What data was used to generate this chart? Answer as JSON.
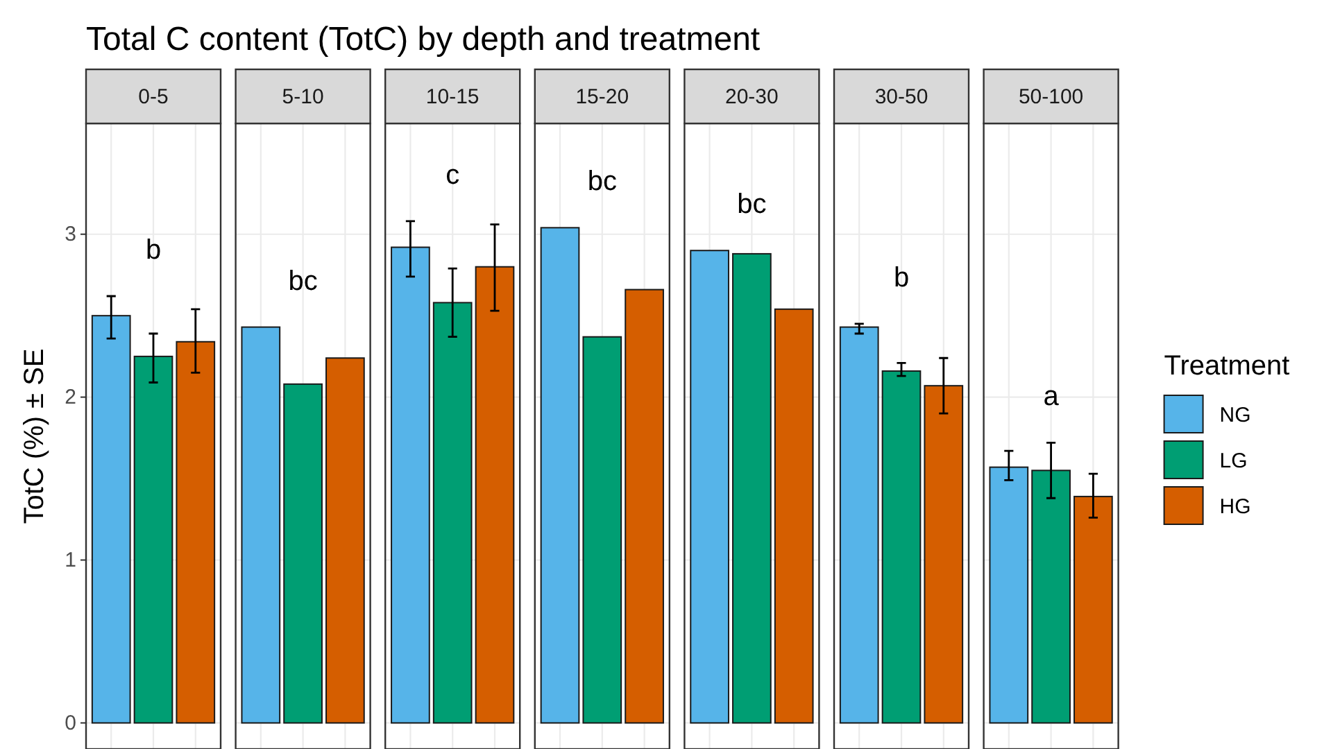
{
  "chart_data": {
    "type": "bar",
    "title": "Total C content (TotC) by depth and treatment",
    "ylabel": "TotC (%) ± SE",
    "categories": [
      "0-5",
      "5-10",
      "10-15",
      "15-20",
      "20-30",
      "30-50",
      "50-100"
    ],
    "ylim": [
      -0.16,
      3.68
    ],
    "yticks": [
      0,
      1,
      2,
      3
    ],
    "grid": true,
    "legend": "right",
    "legend_title": "Treatment",
    "annotations": [
      "b",
      "bc",
      "c",
      "bc",
      "bc",
      "b",
      "a"
    ],
    "series": [
      {
        "name": "NG",
        "color": "#56b4e9",
        "values": [
          2.5,
          2.43,
          2.92,
          3.04,
          2.9,
          2.43,
          1.57
        ],
        "errors": [
          [
            2.36,
            2.62
          ],
          null,
          [
            2.74,
            3.08
          ],
          null,
          null,
          [
            2.39,
            2.45
          ],
          [
            1.49,
            1.67
          ]
        ]
      },
      {
        "name": "LG",
        "color": "#009e73",
        "values": [
          2.25,
          2.08,
          2.58,
          2.37,
          2.88,
          2.16,
          1.55
        ],
        "errors": [
          [
            2.09,
            2.39
          ],
          null,
          [
            2.37,
            2.79
          ],
          null,
          null,
          [
            2.13,
            2.21
          ],
          [
            1.38,
            1.72
          ]
        ]
      },
      {
        "name": "HG",
        "color": "#d55e00",
        "values": [
          2.34,
          2.24,
          2.8,
          2.66,
          2.54,
          2.07,
          1.39
        ],
        "errors": [
          [
            2.15,
            2.54
          ],
          null,
          [
            2.53,
            3.06
          ],
          null,
          null,
          [
            1.9,
            2.24
          ],
          [
            1.26,
            1.53
          ]
        ]
      }
    ]
  }
}
